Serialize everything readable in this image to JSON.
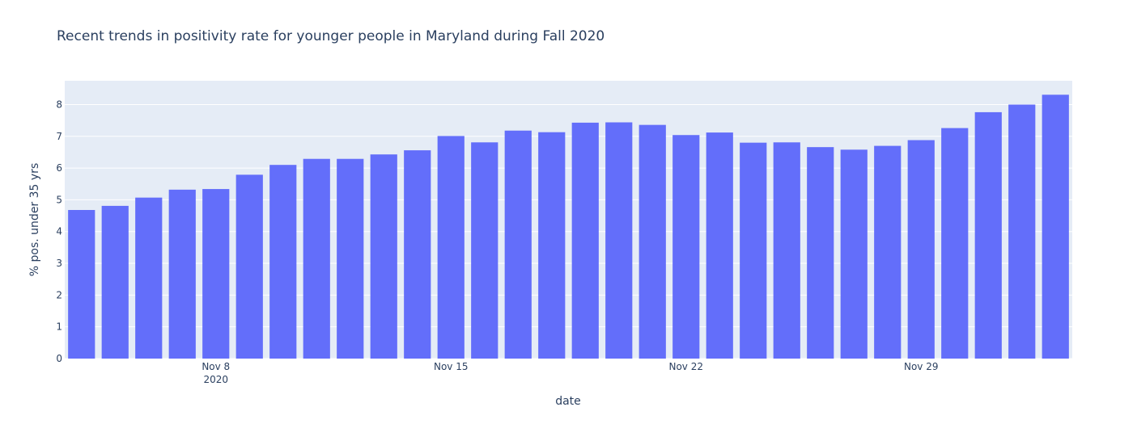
{
  "chart_data": {
    "type": "bar",
    "title": "Recent trends in positivity rate for younger people in Maryland during Fall 2020",
    "xlabel": "date",
    "ylabel": "% pos. under 35 yrs",
    "categories": [
      "2020-11-04",
      "2020-11-05",
      "2020-11-06",
      "2020-11-07",
      "2020-11-08",
      "2020-11-09",
      "2020-11-10",
      "2020-11-11",
      "2020-11-12",
      "2020-11-13",
      "2020-11-14",
      "2020-11-15",
      "2020-11-16",
      "2020-11-17",
      "2020-11-18",
      "2020-11-19",
      "2020-11-20",
      "2020-11-21",
      "2020-11-22",
      "2020-11-23",
      "2020-11-24",
      "2020-11-25",
      "2020-11-26",
      "2020-11-27",
      "2020-11-28",
      "2020-11-29",
      "2020-11-30",
      "2020-12-01",
      "2020-12-02",
      "2020-12-03"
    ],
    "values": [
      4.68,
      4.81,
      5.07,
      5.32,
      5.34,
      5.79,
      6.1,
      6.29,
      6.29,
      6.43,
      6.56,
      7.01,
      6.81,
      7.18,
      7.13,
      7.43,
      7.44,
      7.36,
      7.04,
      7.12,
      6.8,
      6.81,
      6.66,
      6.58,
      6.7,
      6.88,
      7.26,
      7.76,
      8.0,
      8.31
    ],
    "x_ticks": [
      {
        "label": "Nov 8",
        "sublabel": "2020",
        "date": "2020-11-08"
      },
      {
        "label": "Nov 15",
        "sublabel": "",
        "date": "2020-11-15"
      },
      {
        "label": "Nov 22",
        "sublabel": "",
        "date": "2020-11-22"
      },
      {
        "label": "Nov 29",
        "sublabel": "",
        "date": "2020-11-29"
      }
    ],
    "y_ticks": [
      0,
      1,
      2,
      3,
      4,
      5,
      6,
      7,
      8
    ],
    "ylim": [
      0,
      8.75
    ],
    "grid": true,
    "colors": {
      "bar": "#636efa",
      "plot_bg": "#e5ecf6",
      "grid": "#ffffff",
      "text": "#2a3f5f"
    }
  }
}
